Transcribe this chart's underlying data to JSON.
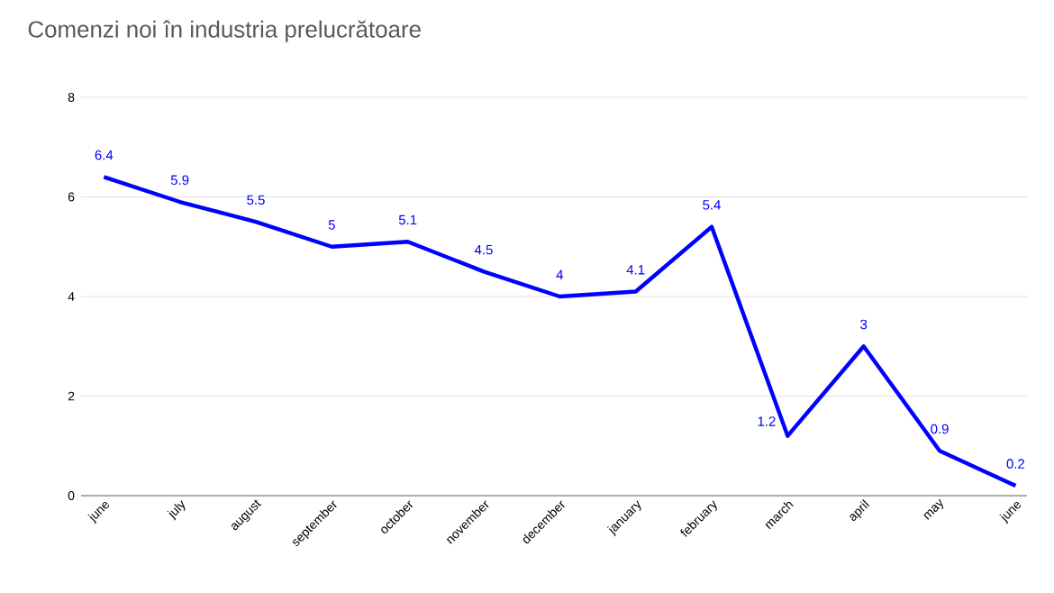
{
  "chart_data": {
    "type": "line",
    "title": "Comenzi noi în industria prelucrătoare",
    "categories": [
      "june",
      "july",
      "august",
      "september",
      "october",
      "november",
      "december",
      "january",
      "february",
      "march",
      "april",
      "may",
      "june"
    ],
    "values": [
      6.4,
      5.9,
      5.5,
      5,
      5.1,
      4.5,
      4,
      4.1,
      5.4,
      1.2,
      3,
      0.9,
      0.2
    ],
    "color": "#0000ff",
    "ylim": [
      0,
      8
    ],
    "yticks": [
      0,
      2,
      4,
      6,
      8
    ],
    "grid": "y",
    "data_labels": true,
    "marker": "none",
    "line_style": "solid"
  }
}
